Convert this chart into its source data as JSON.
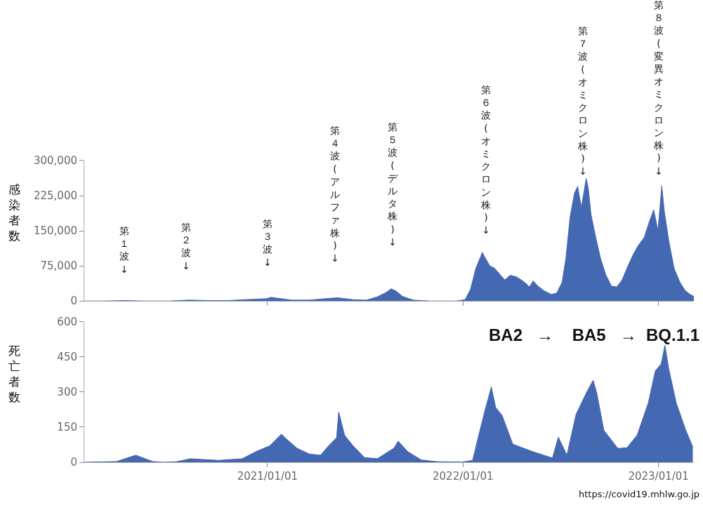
{
  "chart_data": [
    {
      "type": "area",
      "ylabel": "感染者数",
      "color": "#4568b2",
      "tick_labels": "y",
      "xlim": [
        "2020-01-25",
        "2023-03-08"
      ],
      "xticks": [
        {
          "value": "2021-01-01",
          "label": null
        },
        {
          "value": "2022-01-01",
          "label": null
        },
        {
          "value": "2023-01-01",
          "label": null
        }
      ],
      "ylim": [
        0,
        300000
      ],
      "yticks": [
        0,
        {
          "value": 75000,
          "label": "75,000"
        },
        {
          "value": 150000,
          "label": "150,000"
        },
        {
          "value": 225000,
          "label": "225,000"
        },
        {
          "value": 300000,
          "label": "300,000"
        }
      ],
      "x": [
        "2020-01-25",
        "2020-03-01",
        "2020-04-11",
        "2020-05-15",
        "2020-07-01",
        "2020-08-07",
        "2020-09-15",
        "2020-10-20",
        "2020-11-20",
        "2020-12-31",
        "2021-01-08",
        "2021-01-20",
        "2021-02-15",
        "2021-03-20",
        "2021-04-20",
        "2021-05-12",
        "2021-06-10",
        "2021-07-05",
        "2021-07-25",
        "2021-08-10",
        "2021-08-20",
        "2021-08-28",
        "2021-09-10",
        "2021-09-30",
        "2021-10-30",
        "2021-12-20",
        "2022-01-05",
        "2022-01-15",
        "2022-01-25",
        "2022-02-03",
        "2022-02-06",
        "2022-02-10",
        "2022-02-20",
        "2022-03-01",
        "2022-03-10",
        "2022-03-20",
        "2022-03-30",
        "2022-04-10",
        "2022-04-20",
        "2022-04-28",
        "2022-05-05",
        "2022-05-12",
        "2022-05-20",
        "2022-06-01",
        "2022-06-15",
        "2022-06-25",
        "2022-07-05",
        "2022-07-12",
        "2022-07-20",
        "2022-07-28",
        "2022-08-03",
        "2022-08-10",
        "2022-08-18",
        "2022-08-19",
        "2022-08-23",
        "2022-08-28",
        "2022-09-05",
        "2022-09-15",
        "2022-09-25",
        "2022-10-05",
        "2022-10-15",
        "2022-10-25",
        "2022-11-05",
        "2022-11-15",
        "2022-11-25",
        "2022-12-05",
        "2022-12-15",
        "2022-12-23",
        "2022-12-31",
        "2023-01-07",
        "2023-01-12",
        "2023-01-20",
        "2023-01-30",
        "2023-02-10",
        "2023-02-20",
        "2023-03-01",
        "2023-03-08"
      ],
      "values": [
        0,
        0,
        1000,
        0,
        0,
        2000,
        1000,
        1000,
        3000,
        5000,
        8000,
        6000,
        2000,
        2000,
        5000,
        7000,
        3000,
        2000,
        9000,
        18000,
        26000,
        22000,
        10000,
        2000,
        0,
        0,
        3000,
        25000,
        70000,
        95000,
        104000,
        95000,
        75000,
        70000,
        58000,
        45000,
        55000,
        52000,
        45000,
        38000,
        30000,
        43000,
        33000,
        22000,
        14000,
        17000,
        40000,
        90000,
        180000,
        230000,
        245000,
        200000,
        255000,
        262000,
        240000,
        185000,
        140000,
        90000,
        55000,
        32000,
        30000,
        45000,
        75000,
        100000,
        120000,
        135000,
        170000,
        195000,
        150000,
        246000,
        190000,
        130000,
        70000,
        40000,
        22000,
        14000,
        10000
      ],
      "annotations": [
        "第１波↓",
        "第２波↓",
        "第３波↓",
        "第４波(アルファ株)↓",
        "第５波(デルタ株)↓",
        "第６波(オミクロン株)↓",
        "第７波(オミクロン株)↓",
        "第８波(変異オミクロン株)↓"
      ]
    },
    {
      "type": "area",
      "ylabel": "死亡者数",
      "color": "#4568b2",
      "xlim": [
        "2020-01-25",
        "2023-03-08"
      ],
      "xticks": [
        {
          "value": "2021-01-01",
          "label": "2021/01/01"
        },
        {
          "value": "2022-01-01",
          "label": "2022/01/01"
        },
        {
          "value": "2023-01-01",
          "label": "2023/01/01"
        }
      ],
      "ylim": [
        0,
        600
      ],
      "yticks": [
        0,
        150,
        300,
        450,
        600
      ],
      "x": [
        "2020-01-25",
        "2020-03-25",
        "2020-04-30",
        "2020-06-01",
        "2020-06-20",
        "2020-07-15",
        "2020-08-10",
        "2020-10-01",
        "2020-11-15",
        "2020-12-10",
        "2021-01-05",
        "2021-01-27",
        "2021-02-05",
        "2021-02-25",
        "2021-03-20",
        "2021-04-10",
        "2021-04-25",
        "2021-05-10",
        "2021-05-14",
        "2021-05-25",
        "2021-06-10",
        "2021-07-01",
        "2021-07-25",
        "2021-08-25",
        "2021-09-02",
        "2021-09-20",
        "2021-10-15",
        "2021-11-15",
        "2021-12-31",
        "2022-01-19",
        "2022-02-01",
        "2022-02-12",
        "2022-02-23",
        "2022-03-03",
        "2022-03-15",
        "2022-04-04",
        "2022-05-09",
        "2022-06-17",
        "2022-06-28",
        "2022-07-14",
        "2022-07-31",
        "2022-08-20",
        "2022-09-01",
        "2022-09-08",
        "2022-09-21",
        "2022-10-17",
        "2022-11-03",
        "2022-11-22",
        "2022-12-13",
        "2022-12-26",
        "2023-01-06",
        "2023-01-13",
        "2023-01-20",
        "2023-02-03",
        "2023-02-21",
        "2023-03-06"
      ],
      "values": [
        0,
        3,
        30,
        3,
        0,
        2,
        15,
        8,
        15,
        45,
        70,
        120,
        100,
        60,
        35,
        30,
        70,
        105,
        215,
        115,
        70,
        20,
        15,
        60,
        90,
        45,
        10,
        2,
        1,
        8,
        130,
        230,
        322,
        234,
        200,
        77,
        47,
        18,
        107,
        30,
        204,
        300,
        350,
        293,
        136,
        59,
        62,
        115,
        254,
        390,
        420,
        500,
        400,
        254,
        136,
        65
      ],
      "annotations": [
        "BA2   →    BA5   →  BQ.1.1",
        "https://covid19.mhlw.go.jp"
      ]
    }
  ]
}
